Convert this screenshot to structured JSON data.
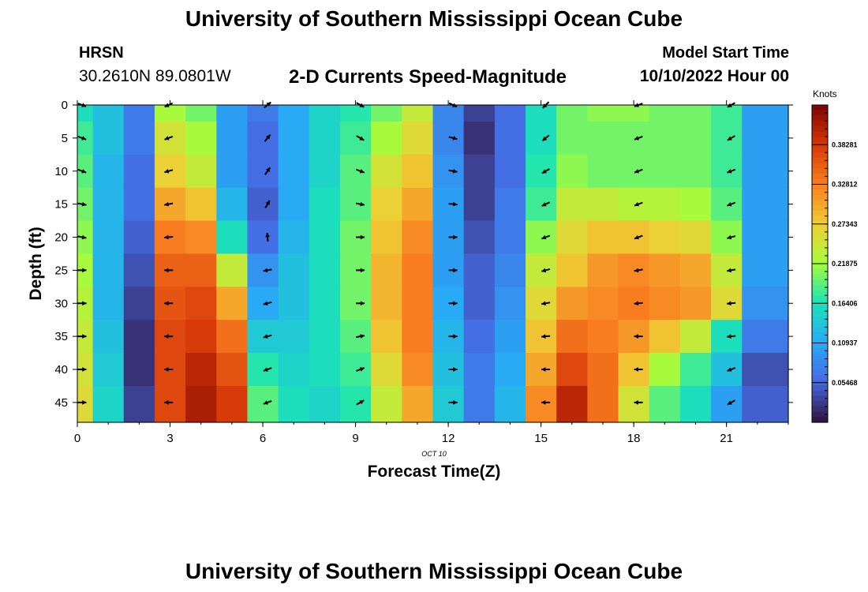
{
  "header": {
    "title": "University of Southern Mississippi Ocean Cube",
    "station": "HRSN",
    "coordinates": "30.2610N  89.0801W",
    "subtitle": "2-D Currents Speed-Magnitude",
    "model_start_label": "Model Start Time",
    "model_start_value": "10/10/2022 Hour 00"
  },
  "colorbar": {
    "units": "Knots",
    "ticks": [
      "0.38281",
      "0.32812",
      "0.27343",
      "0.21875",
      "0.16406",
      "0.10937",
      "0.05468"
    ],
    "tick_values": [
      0.38281,
      0.32812,
      0.27343,
      0.21875,
      0.16406,
      0.10937,
      0.05468
    ],
    "range": [
      0.0,
      0.4375
    ]
  },
  "chart_data": {
    "type": "heatmap",
    "title": "2-D Currents Speed-Magnitude",
    "xlabel": "Forecast Time(Z)",
    "ylabel": "Depth (ft)",
    "date_label": "OCT  10",
    "x_range": [
      0,
      23
    ],
    "y_range": [
      0,
      48
    ],
    "x_ticks": [
      0,
      3,
      6,
      9,
      12,
      15,
      18,
      21
    ],
    "y_ticks": [
      0,
      5,
      10,
      15,
      20,
      25,
      30,
      35,
      40,
      45
    ],
    "hours": [
      0,
      1,
      2,
      3,
      4,
      5,
      6,
      7,
      8,
      9,
      10,
      11,
      12,
      13,
      14,
      15,
      16,
      17,
      18,
      19,
      20,
      21,
      22
    ],
    "depth_levels_ft": [
      0,
      5,
      10,
      15,
      20,
      25,
      30,
      35,
      40,
      45
    ],
    "speed_knots": [
      [
        0.16,
        0.13,
        0.07,
        0.22,
        0.2,
        0.1,
        0.07,
        0.11,
        0.15,
        0.17,
        0.2,
        0.24,
        0.08,
        0.03,
        0.06,
        0.16,
        0.2,
        0.21,
        0.21,
        0.2,
        0.2,
        0.18,
        0.1
      ],
      [
        0.18,
        0.13,
        0.07,
        0.25,
        0.22,
        0.1,
        0.06,
        0.11,
        0.15,
        0.18,
        0.22,
        0.26,
        0.08,
        0.02,
        0.06,
        0.16,
        0.2,
        0.2,
        0.2,
        0.2,
        0.2,
        0.18,
        0.1
      ],
      [
        0.19,
        0.12,
        0.06,
        0.27,
        0.24,
        0.1,
        0.06,
        0.11,
        0.15,
        0.19,
        0.25,
        0.28,
        0.09,
        0.03,
        0.06,
        0.17,
        0.21,
        0.2,
        0.2,
        0.2,
        0.2,
        0.18,
        0.1
      ],
      [
        0.2,
        0.12,
        0.06,
        0.3,
        0.28,
        0.12,
        0.05,
        0.11,
        0.16,
        0.19,
        0.27,
        0.3,
        0.1,
        0.03,
        0.07,
        0.18,
        0.24,
        0.24,
        0.23,
        0.23,
        0.22,
        0.19,
        0.1
      ],
      [
        0.21,
        0.12,
        0.05,
        0.33,
        0.32,
        0.16,
        0.06,
        0.12,
        0.16,
        0.2,
        0.28,
        0.32,
        0.1,
        0.04,
        0.07,
        0.21,
        0.26,
        0.28,
        0.28,
        0.27,
        0.26,
        0.21,
        0.1
      ],
      [
        0.22,
        0.12,
        0.04,
        0.35,
        0.35,
        0.24,
        0.09,
        0.13,
        0.16,
        0.2,
        0.29,
        0.33,
        0.1,
        0.05,
        0.08,
        0.24,
        0.28,
        0.31,
        0.32,
        0.31,
        0.3,
        0.24,
        0.1
      ],
      [
        0.23,
        0.12,
        0.03,
        0.36,
        0.37,
        0.3,
        0.11,
        0.13,
        0.16,
        0.2,
        0.29,
        0.33,
        0.11,
        0.05,
        0.09,
        0.26,
        0.31,
        0.32,
        0.33,
        0.32,
        0.31,
        0.26,
        0.09
      ],
      [
        0.24,
        0.13,
        0.02,
        0.37,
        0.38,
        0.34,
        0.14,
        0.14,
        0.16,
        0.19,
        0.28,
        0.33,
        0.12,
        0.06,
        0.1,
        0.28,
        0.34,
        0.33,
        0.31,
        0.28,
        0.24,
        0.16,
        0.07
      ],
      [
        0.25,
        0.14,
        0.02,
        0.37,
        0.4,
        0.36,
        0.17,
        0.15,
        0.16,
        0.18,
        0.26,
        0.32,
        0.13,
        0.07,
        0.11,
        0.3,
        0.37,
        0.34,
        0.28,
        0.22,
        0.18,
        0.13,
        0.04
      ],
      [
        0.26,
        0.15,
        0.03,
        0.37,
        0.41,
        0.38,
        0.19,
        0.16,
        0.15,
        0.17,
        0.24,
        0.3,
        0.14,
        0.07,
        0.12,
        0.32,
        0.4,
        0.34,
        0.25,
        0.19,
        0.16,
        0.1,
        0.05
      ]
    ],
    "arrow_hours": [
      0,
      2.8,
      6,
      9,
      12,
      15,
      18,
      21
    ],
    "arrow_angles_deg": [
      [
        -20,
        -20,
        -20,
        -10,
        -10,
        0,
        0,
        0,
        0,
        0
      ],
      [
        205,
        200,
        195,
        190,
        185,
        180,
        180,
        180,
        180,
        180
      ],
      [
        40,
        50,
        55,
        60,
        95,
        190,
        195,
        195,
        200,
        200
      ],
      [
        -30,
        -30,
        -20,
        -10,
        0,
        0,
        0,
        10,
        20,
        30
      ],
      [
        -25,
        -15,
        -10,
        -5,
        0,
        0,
        0,
        0,
        0,
        0
      ],
      [
        225,
        220,
        210,
        205,
        200,
        195,
        190,
        185,
        180,
        180
      ],
      [
        200,
        200,
        200,
        200,
        200,
        190,
        185,
        180,
        180,
        180
      ],
      [
        210,
        210,
        200,
        200,
        195,
        190,
        185,
        185,
        200,
        210
      ]
    ]
  }
}
